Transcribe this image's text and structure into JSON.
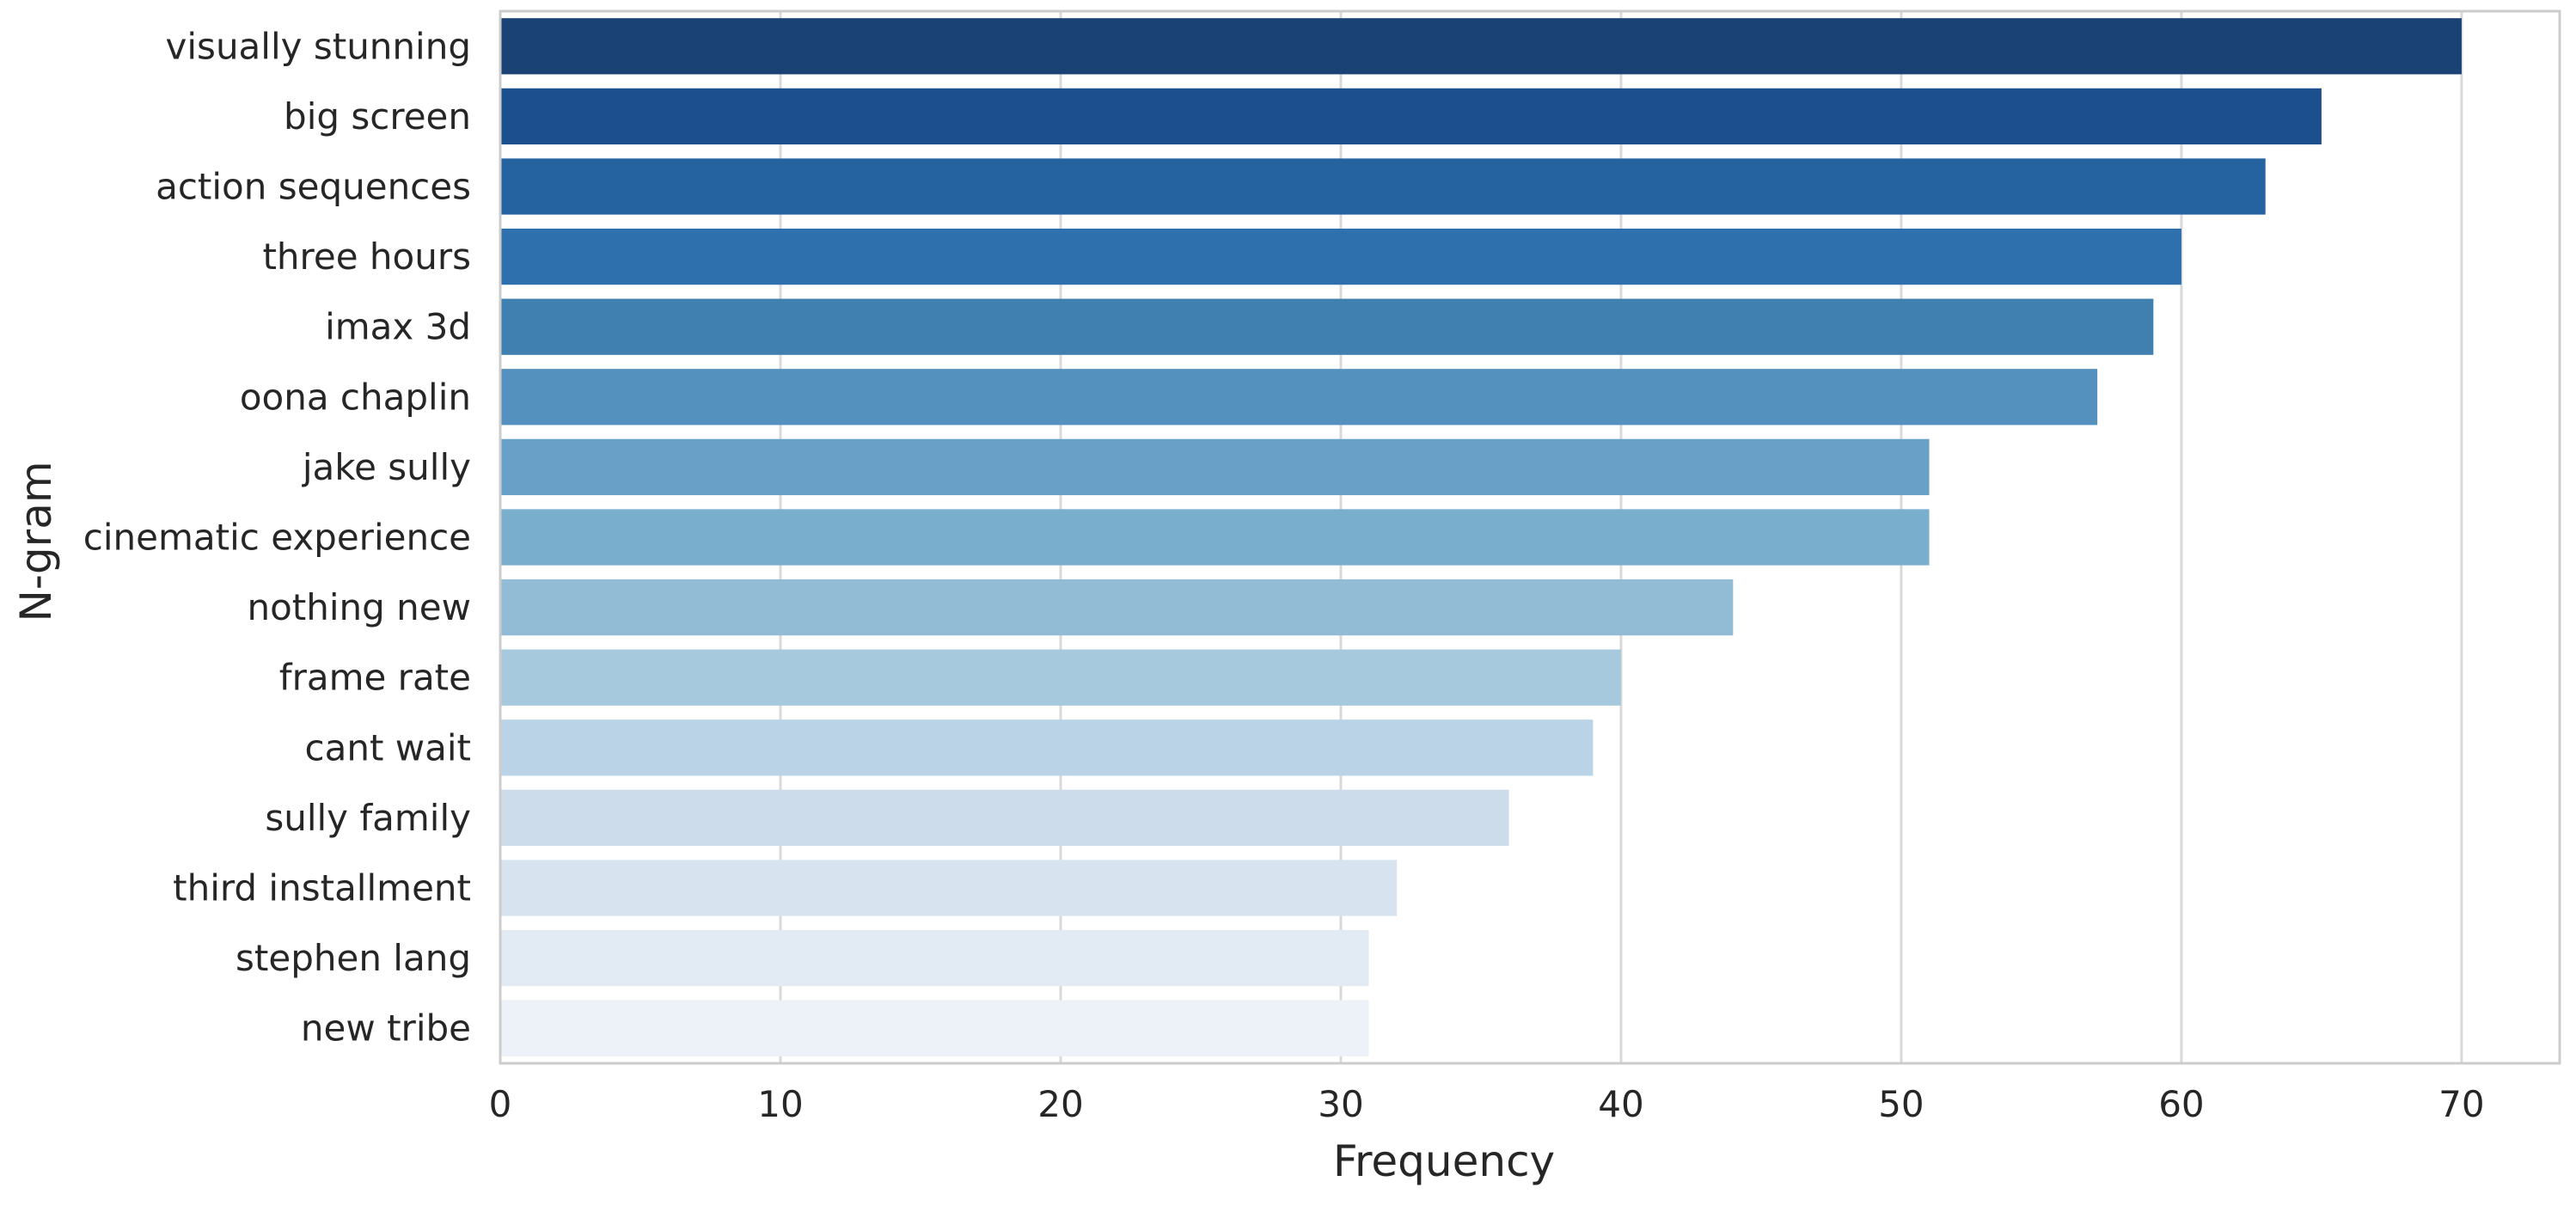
{
  "chart_data": {
    "type": "bar",
    "orientation": "horizontal",
    "title": "",
    "xlabel": "Frequency",
    "ylabel": "N-gram",
    "xlim": [
      0,
      73.5
    ],
    "x_ticks": [
      0,
      10,
      20,
      30,
      40,
      50,
      60,
      70
    ],
    "grid": "vertical",
    "palette": "Blues",
    "categories": [
      "visually stunning",
      "big screen",
      "action sequences",
      "three hours",
      "imax 3d",
      "oona chaplin",
      "jake sully",
      "cinematic experience",
      "nothing new",
      "frame rate",
      "cant wait",
      "sully family",
      "third installment",
      "stephen lang",
      "new tribe"
    ],
    "values": [
      70,
      65,
      63,
      60,
      59,
      57,
      51,
      51,
      44,
      40,
      39,
      36,
      32,
      31,
      31
    ],
    "colors": [
      "#1a4274",
      "#1b4f8e",
      "#2462a0",
      "#2d70ad",
      "#4080b1",
      "#5491bf",
      "#68a0c7",
      "#7aaecd",
      "#92bcd6",
      "#a6c9dd",
      "#bad3e6",
      "#cddcea",
      "#d7e4f0",
      "#e2eaf4",
      "#edf1f8"
    ]
  }
}
